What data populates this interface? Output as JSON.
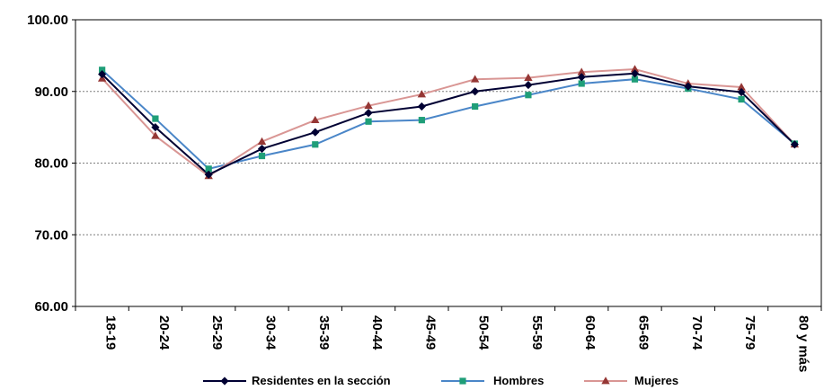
{
  "chart_data": {
    "type": "line",
    "title": "",
    "xlabel": "",
    "ylabel": "",
    "ylim": [
      60,
      100
    ],
    "yticks": [
      "60.00",
      "70.00",
      "80.00",
      "90.00",
      "100.00"
    ],
    "grid": "horizontal-dotted",
    "legend_position": "bottom",
    "categories": [
      "18-19",
      "20-24",
      "25-29",
      "30-34",
      "35-39",
      "40-44",
      "45-49",
      "50-54",
      "55-59",
      "60-64",
      "65-69",
      "70-74",
      "75-79",
      "80 y más"
    ],
    "series": [
      {
        "name": "Residentes en la sección",
        "color": "#000033",
        "marker": "diamond",
        "values": [
          92.4,
          85.0,
          78.4,
          82.0,
          84.3,
          87.0,
          87.9,
          90.0,
          90.9,
          92.0,
          92.5,
          90.7,
          89.9,
          82.6
        ]
      },
      {
        "name": "Hombres",
        "color": "#4a86c8",
        "marker": "square",
        "marker_color": "#1f9e78",
        "values": [
          93.0,
          86.2,
          79.2,
          81.0,
          82.6,
          85.8,
          86.0,
          87.9,
          89.5,
          91.1,
          91.7,
          90.4,
          88.9,
          82.7
        ]
      },
      {
        "name": "Mujeres",
        "color": "#d99694",
        "marker": "triangle",
        "marker_color": "#953735",
        "values": [
          91.8,
          83.8,
          78.2,
          83.0,
          86.0,
          88.0,
          89.6,
          91.7,
          91.9,
          92.7,
          93.1,
          91.1,
          90.6,
          82.6
        ]
      }
    ]
  }
}
